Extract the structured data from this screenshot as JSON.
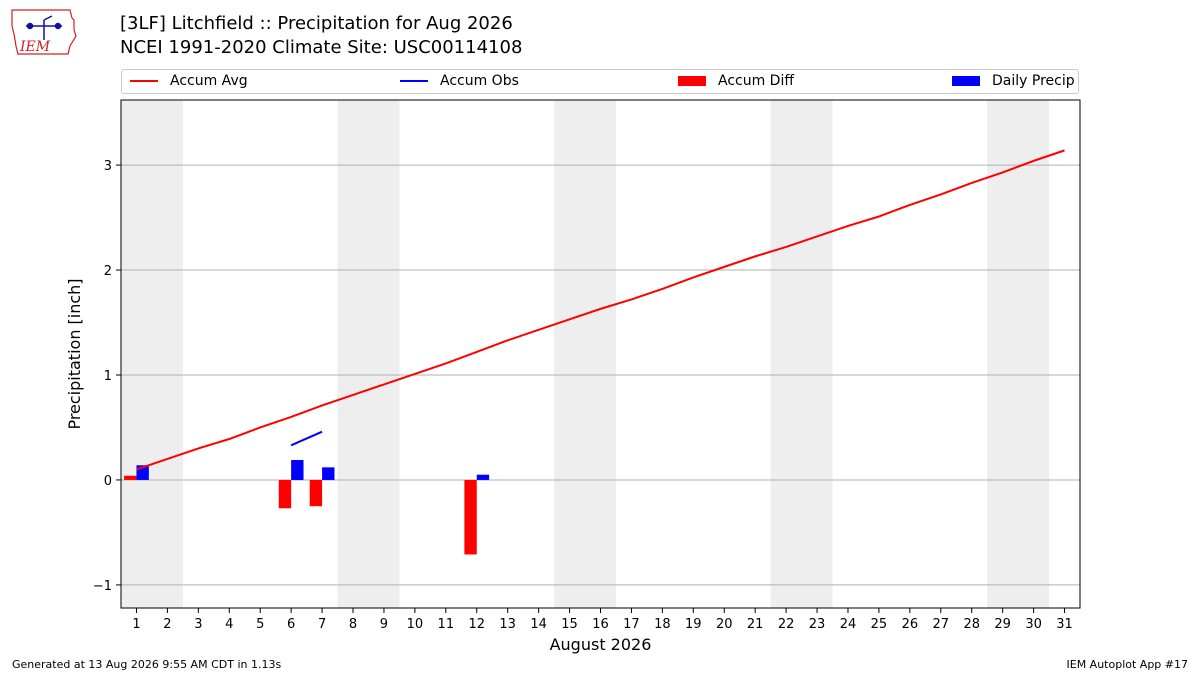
{
  "header": {
    "title_line1": "[3LF] Litchfield :: Precipitation for Aug 2026",
    "title_line2": "NCEI 1991-2020 Climate Site: USC00114108"
  },
  "logo": {
    "text": "IEM",
    "icon": "iem-iowa-logo-icon"
  },
  "legend": [
    {
      "label": "Accum Avg",
      "kind": "line",
      "color": "#ff0000"
    },
    {
      "label": "Accum Obs",
      "kind": "line",
      "color": "#0000ff"
    },
    {
      "label": "Accum Diff",
      "kind": "patch",
      "color": "#ff0000"
    },
    {
      "label": "Daily Precip",
      "kind": "patch",
      "color": "#0000ff"
    }
  ],
  "footer": {
    "generated": "Generated at 13 Aug 2026 9:55 AM CDT in 1.13s",
    "app": "IEM Autoplot App #17"
  },
  "chart_data": {
    "type": "bar",
    "xlabel": "August 2026",
    "ylabel": "Precipitation [inch]",
    "xlim": [
      0.5,
      31.5
    ],
    "ylim": [
      -1.22,
      3.62
    ],
    "x_ticks": [
      1,
      2,
      3,
      4,
      5,
      6,
      7,
      8,
      9,
      10,
      11,
      12,
      13,
      14,
      15,
      16,
      17,
      18,
      19,
      20,
      21,
      22,
      23,
      24,
      25,
      26,
      27,
      28,
      29,
      30,
      31
    ],
    "y_ticks": [
      -1,
      0,
      1,
      2,
      3
    ],
    "y_tick_labels": [
      "−1",
      "0",
      "1",
      "2",
      "3"
    ],
    "grid": "horizontal",
    "legend_position": "top",
    "weekend_bands": [
      [
        0.5,
        2.5
      ],
      [
        7.5,
        9.5
      ],
      [
        14.5,
        16.5
      ],
      [
        21.5,
        23.5
      ],
      [
        28.5,
        30.5
      ]
    ],
    "series": [
      {
        "name": "Accum Avg",
        "type": "line",
        "color": "#ff0000",
        "x": [
          1,
          2,
          3,
          4,
          5,
          6,
          7,
          8,
          9,
          10,
          11,
          12,
          13,
          14,
          15,
          16,
          17,
          18,
          19,
          20,
          21,
          22,
          23,
          24,
          25,
          26,
          27,
          28,
          29,
          30,
          31
        ],
        "values": [
          0.1,
          0.2,
          0.3,
          0.39,
          0.5,
          0.6,
          0.71,
          0.81,
          0.91,
          1.01,
          1.11,
          1.22,
          1.33,
          1.43,
          1.53,
          1.63,
          1.72,
          1.82,
          1.93,
          2.03,
          2.13,
          2.22,
          2.32,
          2.42,
          2.51,
          2.62,
          2.72,
          2.83,
          2.93,
          3.04,
          3.14
        ]
      },
      {
        "name": "Accum Obs",
        "type": "line",
        "color": "#0000ff",
        "x": [
          6,
          7
        ],
        "values": [
          0.33,
          0.46
        ]
      },
      {
        "name": "Accum Diff",
        "type": "bar",
        "color": "#ff0000",
        "x": [
          1,
          6,
          7,
          12
        ],
        "values": [
          0.04,
          -0.27,
          -0.25,
          -0.71
        ]
      },
      {
        "name": "Daily Precip",
        "type": "bar",
        "color": "#0000ff",
        "x": [
          1,
          6,
          7,
          12
        ],
        "values": [
          0.14,
          0.19,
          0.12,
          0.05
        ]
      }
    ]
  }
}
